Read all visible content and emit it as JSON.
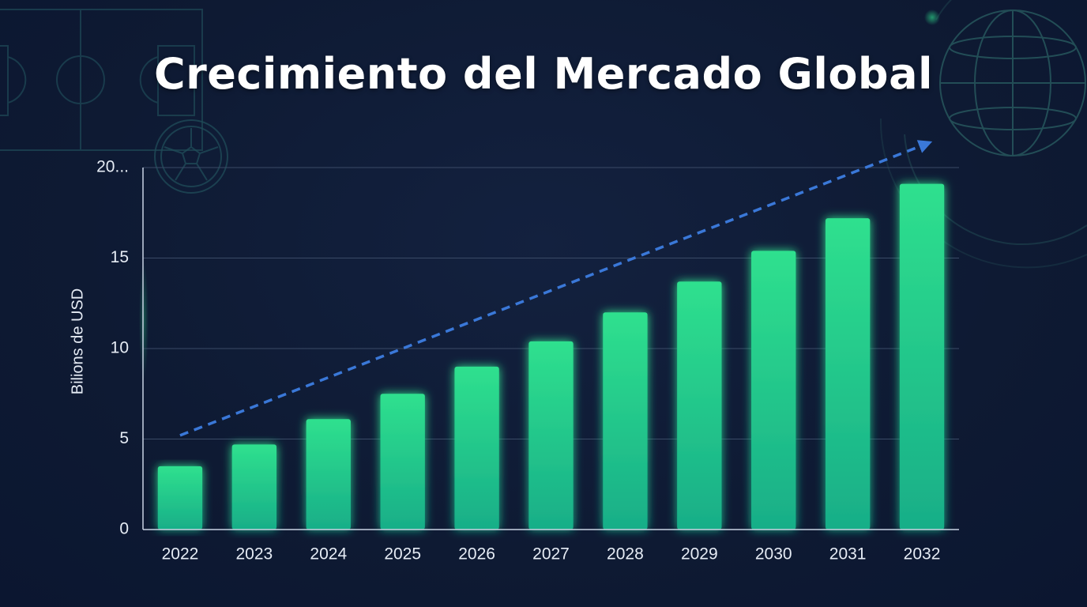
{
  "title": "Crecimiento del Mercado Global",
  "colors": {
    "background": "#0e1a33",
    "bar_top": "#2fe08e",
    "bar_bottom": "#18ae88",
    "trend_arrow": "#3a78d8",
    "grid": "#3a4a66",
    "text": "#e6ecf5"
  },
  "decorations": [
    "soccer-field-outline",
    "soccer-ball-icon",
    "globe-icon"
  ],
  "chart_data": {
    "type": "bar",
    "categories": [
      "2022",
      "2023",
      "2024",
      "2025",
      "2026",
      "2027",
      "2028",
      "2029",
      "2030",
      "2031",
      "2032"
    ],
    "values": [
      3.5,
      4.7,
      6.1,
      7.5,
      9.0,
      10.4,
      12.0,
      13.7,
      15.4,
      17.2,
      19.1
    ],
    "ylabel": "Bilions de USD",
    "xlabel": "",
    "ylim": [
      0,
      20
    ],
    "yticks": [
      "0",
      "5",
      "10",
      "15",
      "20..."
    ],
    "grid": true,
    "legend": "none",
    "trend_arrow": {
      "style": "dashed",
      "direction": "up-right"
    }
  }
}
